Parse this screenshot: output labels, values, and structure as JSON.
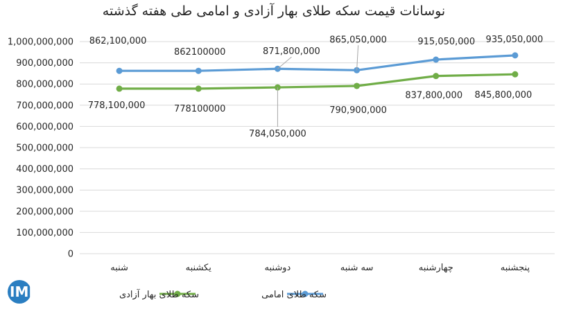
{
  "logo": {
    "text": "IMNA"
  },
  "colors": {
    "series_azadi": "#70ad47",
    "series_emami": "#5b9bd5",
    "logo_blue": "#2a7ec1",
    "gridline": "#d9d9d9"
  },
  "chart_data": {
    "type": "line",
    "title": "نوسانات قیمت سکه طلای بهار آزادی و امامی طی هفته گذشته",
    "xlabel": "",
    "ylabel": "",
    "ylim": [
      0,
      1000000000
    ],
    "y_step": 100000000,
    "y_tick_labels": [
      "0",
      "100,000,000",
      "200,000,000",
      "300,000,000",
      "400,000,000",
      "500,000,000",
      "600,000,000",
      "700,000,000",
      "800,000,000",
      "900,000,000",
      "1,000,000,000"
    ],
    "grid": true,
    "legend_position": "bottom",
    "categories": [
      "شنبه",
      "یکشنبه",
      "دوشنبه",
      "سه شنبه",
      "چهارشنبه",
      "پنجشنبه"
    ],
    "series": [
      {
        "name": "سکه طلای امامی",
        "color": "#5b9bd5",
        "values": [
          862100000,
          862100000,
          871800000,
          865050000,
          915050000,
          935050000
        ],
        "labels": [
          "862,100,000",
          "862100000",
          "871,800,000",
          "865,050,000",
          "915,050,000",
          "935,050,000"
        ]
      },
      {
        "name": "سکه طلای بهار آزادی",
        "color": "#70ad47",
        "values": [
          778100000,
          778100000,
          784050000,
          790900000,
          837800000,
          845800000
        ],
        "labels": [
          "778,100,000",
          "778100000",
          "784,050,000",
          "790,900,000",
          "837,800,000",
          "845,800,000"
        ]
      }
    ]
  }
}
